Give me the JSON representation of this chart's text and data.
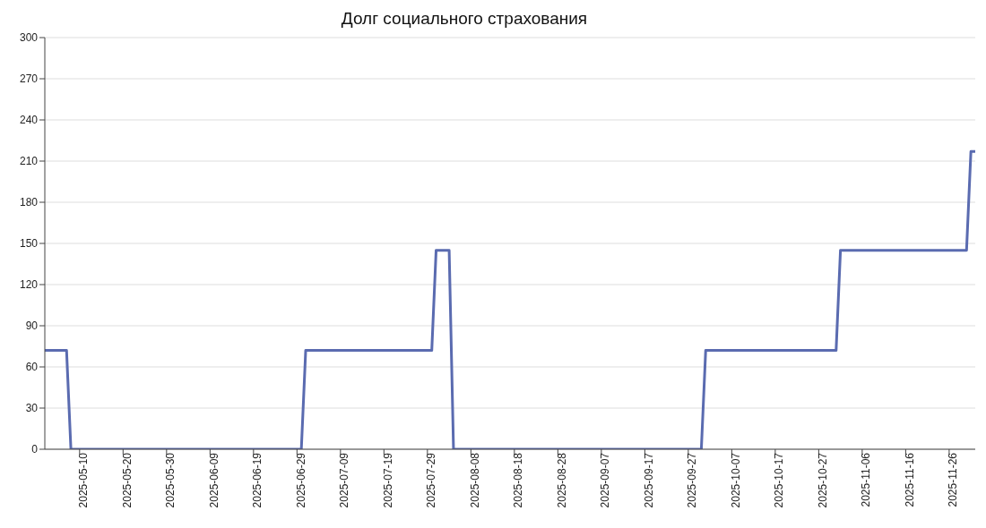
{
  "chart_data": {
    "type": "line",
    "title": "Долг социального страхования",
    "x": [
      "2025-05-02",
      "2025-05-07",
      "2025-05-08",
      "2025-06-30",
      "2025-07-01",
      "2025-07-30",
      "2025-07-31",
      "2025-08-03",
      "2025-08-04",
      "2025-09-30",
      "2025-10-01",
      "2025-10-31",
      "2025-11-01",
      "2025-11-30",
      "2025-12-01",
      "2025-12-02"
    ],
    "series": [
      {
        "color": "#5a6bb0",
        "values": [
          72,
          72,
          0,
          0,
          72,
          72,
          145,
          145,
          0,
          0,
          72,
          72,
          145,
          145,
          217,
          217
        ]
      }
    ],
    "xlim": [
      "2025-05-02",
      "2025-12-02"
    ],
    "xticks": [
      "2025-05-10",
      "2025-05-20",
      "2025-05-30",
      "2025-06-09",
      "2025-06-19",
      "2025-06-29",
      "2025-07-09",
      "2025-07-19",
      "2025-07-29",
      "2025-08-08",
      "2025-08-18",
      "2025-08-28",
      "2025-09-07",
      "2025-09-17",
      "2025-09-27",
      "2025-10-07",
      "2025-10-17",
      "2025-10-27",
      "2025-11-06",
      "2025-11-16",
      "2025-11-26"
    ],
    "ylim": [
      0,
      300
    ],
    "yticks": [
      0,
      30,
      60,
      90,
      120,
      150,
      180,
      210,
      240,
      270,
      300
    ],
    "grid": "y",
    "legend": false,
    "marker": "none",
    "line_style": "solid"
  }
}
